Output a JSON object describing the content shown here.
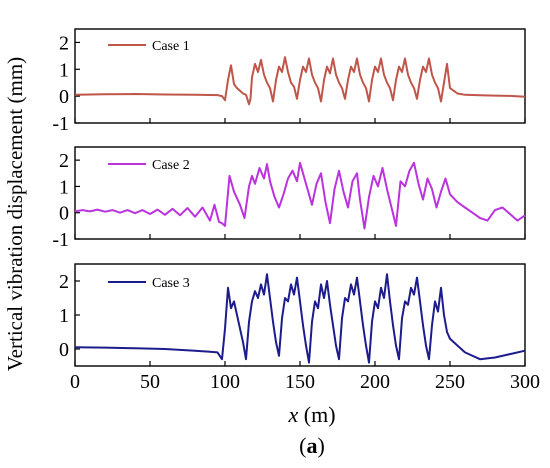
{
  "figure": {
    "ylabel": "Vertical vibration displacement (mm)",
    "xlabel_var": "x",
    "xlabel_unit": " (m)",
    "caption_letter": "a"
  },
  "chart_data": [
    {
      "type": "line",
      "legend": "Case 1",
      "color": "#c0554a",
      "xlim": [
        0,
        300
      ],
      "ylim": [
        -1,
        2.5
      ],
      "yticks": [
        -1,
        0,
        1,
        2
      ],
      "xticks": [
        0,
        50,
        100,
        150,
        200,
        250,
        300
      ],
      "x": [
        0,
        20,
        40,
        60,
        80,
        95,
        98,
        100,
        102,
        104,
        106,
        108,
        110,
        112,
        114,
        116,
        117,
        118,
        120,
        122,
        124,
        126,
        128,
        130,
        132,
        134,
        136,
        138,
        140,
        142,
        144,
        146,
        148,
        150,
        152,
        154,
        156,
        158,
        160,
        162,
        164,
        166,
        168,
        170,
        172,
        174,
        176,
        178,
        180,
        182,
        184,
        186,
        188,
        190,
        192,
        194,
        196,
        198,
        200,
        202,
        204,
        206,
        208,
        210,
        212,
        214,
        216,
        218,
        220,
        222,
        224,
        226,
        228,
        230,
        232,
        234,
        236,
        238,
        240,
        242,
        244,
        246,
        248,
        250,
        255,
        260,
        270,
        280,
        290,
        300
      ],
      "y": [
        0.05,
        0.07,
        0.08,
        0.06,
        0.05,
        0.04,
        0,
        -0.15,
        0.6,
        1.15,
        0.45,
        0.3,
        0.2,
        0.1,
        0.05,
        -0.3,
        -0.1,
        0.7,
        1.2,
        0.9,
        1.35,
        0.8,
        0.5,
        0.3,
        -0.2,
        0.6,
        1.1,
        0.9,
        1.45,
        0.9,
        0.5,
        0.35,
        -0.1,
        0.6,
        1.1,
        0.9,
        1.4,
        0.8,
        0.5,
        0.3,
        -0.2,
        0.6,
        1.1,
        0.85,
        1.4,
        0.8,
        0.5,
        0.3,
        -0.1,
        0.6,
        1.1,
        0.9,
        1.4,
        0.8,
        0.5,
        0.3,
        -0.2,
        0.6,
        1.1,
        0.9,
        1.4,
        0.8,
        0.5,
        0.3,
        -0.15,
        0.6,
        1.1,
        0.9,
        1.4,
        0.8,
        0.5,
        0.3,
        -0.1,
        0.6,
        1.1,
        0.9,
        1.4,
        0.8,
        0.5,
        0.3,
        -0.2,
        0.5,
        1.2,
        0.3,
        0.1,
        0.05,
        0.03,
        0.02,
        0.01,
        -0.02
      ]
    },
    {
      "type": "line",
      "legend": "Case 2",
      "color": "#bb33dd",
      "xlim": [
        0,
        300
      ],
      "ylim": [
        -1,
        2.5
      ],
      "yticks": [
        -1,
        0,
        1,
        2
      ],
      "xticks": [
        0,
        50,
        100,
        150,
        200,
        250,
        300
      ],
      "x": [
        0,
        5,
        10,
        15,
        20,
        25,
        30,
        35,
        40,
        45,
        50,
        55,
        60,
        65,
        70,
        75,
        80,
        85,
        90,
        93,
        96,
        98,
        100,
        103,
        106,
        110,
        113,
        116,
        118,
        120,
        123,
        126,
        128,
        130,
        133,
        136,
        139,
        142,
        145,
        148,
        150,
        152,
        155,
        158,
        161,
        164,
        167,
        170,
        173,
        176,
        179,
        182,
        185,
        188,
        190,
        193,
        196,
        199,
        202,
        205,
        208,
        211,
        214,
        217,
        220,
        223,
        226,
        229,
        232,
        235,
        238,
        241,
        244,
        247,
        250,
        255,
        260,
        265,
        270,
        275,
        280,
        285,
        290,
        295,
        300
      ],
      "y": [
        0.05,
        0.1,
        0.05,
        0.12,
        0.04,
        0.1,
        0.0,
        0.1,
        -0.02,
        0.1,
        -0.05,
        0.12,
        -0.08,
        0.15,
        -0.1,
        0.18,
        -0.15,
        0.2,
        -0.3,
        0.3,
        -0.35,
        -0.4,
        -0.5,
        1.4,
        0.8,
        0.3,
        -0.2,
        1.0,
        1.4,
        1.1,
        1.7,
        1.3,
        1.85,
        1.2,
        0.6,
        0.2,
        0.7,
        1.3,
        1.6,
        1.2,
        1.9,
        1.5,
        0.9,
        0.3,
        1.1,
        1.5,
        0.4,
        -0.4,
        0.9,
        1.6,
        0.8,
        0.2,
        1.2,
        1.5,
        0.5,
        -0.6,
        0.6,
        1.4,
        1.0,
        1.7,
        0.9,
        0.2,
        -0.5,
        1.2,
        1.0,
        1.6,
        1.9,
        1.1,
        0.5,
        1.3,
        0.9,
        0.2,
        0.8,
        1.3,
        0.7,
        0.4,
        0.2,
        0.0,
        -0.2,
        -0.3,
        0.1,
        0.2,
        -0.05,
        -0.3,
        -0.1
      ]
    },
    {
      "type": "line",
      "legend": "Case 3",
      "color": "#1c1c8c",
      "xlim": [
        0,
        300
      ],
      "ylim": [
        -0.5,
        2.5
      ],
      "yticks": [
        0,
        1,
        2
      ],
      "xticks": [
        0,
        50,
        100,
        150,
        200,
        250,
        300
      ],
      "x": [
        0,
        20,
        40,
        60,
        80,
        90,
        95,
        98,
        100,
        102,
        104,
        106,
        108,
        110,
        112,
        114,
        116,
        118,
        120,
        122,
        124,
        126,
        128,
        130,
        132,
        134,
        136,
        138,
        140,
        142,
        144,
        146,
        148,
        150,
        152,
        154,
        156,
        158,
        160,
        162,
        164,
        166,
        168,
        170,
        172,
        174,
        176,
        178,
        180,
        182,
        184,
        186,
        188,
        190,
        192,
        194,
        196,
        198,
        200,
        202,
        204,
        206,
        208,
        210,
        212,
        214,
        216,
        218,
        220,
        222,
        224,
        226,
        228,
        230,
        232,
        234,
        236,
        238,
        240,
        242,
        244,
        246,
        248,
        250,
        255,
        260,
        270,
        280,
        290,
        300
      ],
      "y": [
        0.05,
        0.04,
        0.02,
        0.0,
        -0.05,
        -0.08,
        -0.1,
        -0.3,
        0.6,
        1.8,
        1.2,
        1.4,
        1.0,
        0.6,
        0.2,
        -0.3,
        0.8,
        1.4,
        1.7,
        1.5,
        1.9,
        1.6,
        2.2,
        1.5,
        0.8,
        0.2,
        -0.2,
        0.9,
        1.5,
        1.4,
        1.9,
        1.6,
        2.1,
        1.4,
        0.7,
        0.1,
        -0.4,
        0.8,
        1.4,
        1.2,
        1.9,
        1.5,
        2.0,
        1.3,
        0.7,
        0.1,
        -0.3,
        0.9,
        1.5,
        1.4,
        1.9,
        1.6,
        2.1,
        1.4,
        0.7,
        0.1,
        -0.4,
        0.8,
        1.4,
        1.2,
        1.8,
        1.5,
        2.2,
        1.4,
        0.7,
        0.1,
        -0.3,
        0.9,
        1.4,
        1.3,
        1.8,
        1.6,
        2.1,
        1.4,
        0.7,
        0.1,
        -0.3,
        0.7,
        1.4,
        1.1,
        1.8,
        1.0,
        0.5,
        0.3,
        0.1,
        -0.1,
        -0.3,
        -0.25,
        -0.15,
        -0.05
      ]
    }
  ]
}
